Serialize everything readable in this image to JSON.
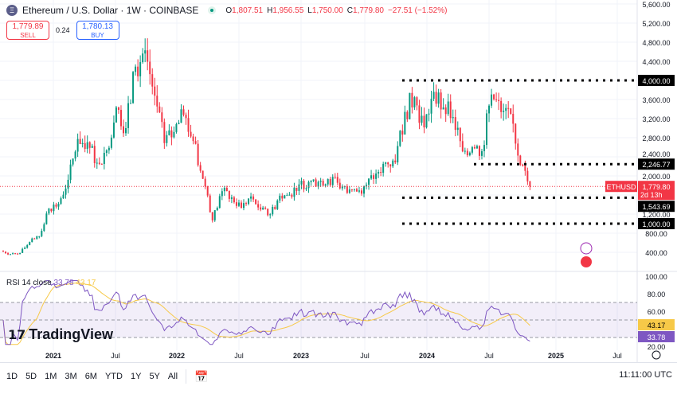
{
  "header": {
    "symbol": "Ethereum / U.S. Dollar · 1W · COINBASE",
    "logo_glyph": "Ξ",
    "ohlc": {
      "o_label": "O",
      "o": "1,807.51",
      "h_label": "H",
      "h": "1,956.55",
      "l_label": "L",
      "l": "1,750.00",
      "c_label": "C",
      "c": "1,779.80",
      "change": "−27.51 (−1.52%)"
    }
  },
  "trade": {
    "sell_price": "1,779.89",
    "sell_label": "SELL",
    "spread": "0.24",
    "buy_price": "1,780.13",
    "buy_label": "BUY"
  },
  "colors": {
    "up": "#089981",
    "down": "#f23645",
    "rsi": "#7e57c2",
    "rsi_ma": "#f7c948"
  },
  "price_axis": {
    "ticks": [
      "5,600.00",
      "5,200.00",
      "4,800.00",
      "4,400.00",
      "4,000.00",
      "3,600.00",
      "3,200.00",
      "2,800.00",
      "2,400.00",
      "2,000.00",
      "1,200.00",
      "800.00",
      "400.00"
    ],
    "levels": [
      "4,000.00",
      "2,246.77",
      "1,543.69",
      "1,000.00"
    ],
    "current_symbol": "ETHUSD",
    "current_price": "1,779.80",
    "countdown": "2d 13h"
  },
  "rsi": {
    "label": "RSI 14 close",
    "value": "33.78",
    "ma_value": "43.17",
    "ticks": [
      "100.00",
      "80.00",
      "60.00",
      "20.00"
    ]
  },
  "time_axis": [
    "2021",
    "Jul",
    "2022",
    "Jul",
    "2023",
    "Jul",
    "2024",
    "Jul",
    "2025",
    "Jul"
  ],
  "watermark": "TradingView",
  "toolbar": {
    "ranges": [
      "1D",
      "5D",
      "1M",
      "3M",
      "6M",
      "YTD",
      "1Y",
      "5Y",
      "All"
    ],
    "clock": "11:11:00 UTC"
  },
  "chart_data": {
    "type": "candlestick",
    "interval": "1W",
    "note_series": "approximate monthly closes from Aug 2020 to Mar 2025",
    "monthly_close": [
      430,
      360,
      386,
      615,
      737,
      1314,
      1416,
      1918,
      2773,
      2706,
      2275,
      2536,
      3433,
      3000,
      4288,
      4630,
      3680,
      2687,
      2920,
      3280,
      2730,
      1940,
      1070,
      1680,
      1550,
      1330,
      1570,
      1295,
      1196,
      1585,
      1605,
      1822,
      1870,
      1875,
      1934,
      1856,
      1645,
      1671,
      1815,
      2050,
      2282,
      2283,
      3340,
      3647,
      3015,
      3760,
      3433,
      3232,
      2513,
      2602,
      2518,
      3705,
      3337,
      3300,
      2237,
      1780
    ],
    "ylim": [
      0,
      5700
    ],
    "horizontal_levels": [
      4000,
      2246.77,
      1543.69,
      1000
    ]
  }
}
